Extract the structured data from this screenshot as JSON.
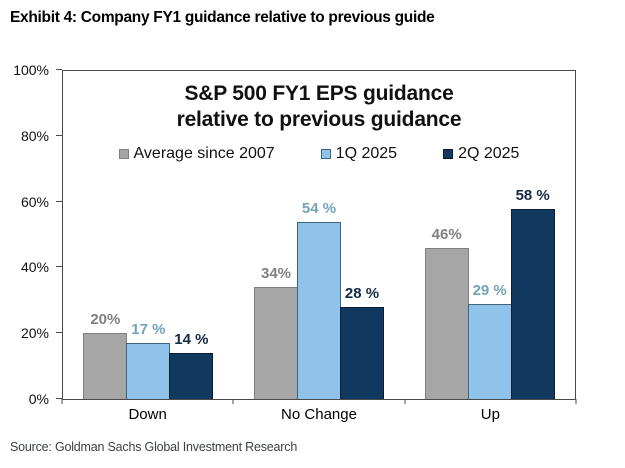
{
  "exhibit_title": "Exhibit 4: Company FY1 guidance relative to previous guide",
  "source": "Source: Goldman Sachs Global Investment Research",
  "chart_data": {
    "type": "bar",
    "title": "S&P 500 FY1 EPS guidance relative to previous guidance",
    "title_line1": "S&P 500 FY1 EPS guidance",
    "title_line2": "relative to previous guidance",
    "categories": [
      "Down",
      "No Change",
      "Up"
    ],
    "series": [
      {
        "name": "Average since 2007",
        "values": [
          20,
          34,
          46
        ],
        "labels": [
          "20%",
          "34%",
          "46%"
        ],
        "color": "#A6A6A6",
        "border": "#7F7F7F",
        "label_color": "#808080"
      },
      {
        "name": "1Q 2025",
        "values": [
          17,
          54,
          29
        ],
        "labels": [
          "17 %",
          "54 %",
          "29 %"
        ],
        "color": "#8FC3E9",
        "border": "#3C657F",
        "label_color": "#74A2B8"
      },
      {
        "name": "2Q 2025",
        "values": [
          14,
          28,
          58
        ],
        "labels": [
          "14 %",
          "28 %",
          "58 %"
        ],
        "color": "#11395F",
        "border": "#081F36",
        "label_color": "#152B45"
      }
    ],
    "xlabel": "",
    "ylabel": "",
    "ylim": [
      0,
      100
    ],
    "yticks": [
      "0%",
      "20%",
      "40%",
      "60%",
      "80%",
      "100%"
    ],
    "legend_position": "top-inside",
    "grid": false,
    "axis_color": "#4a4a4a"
  }
}
